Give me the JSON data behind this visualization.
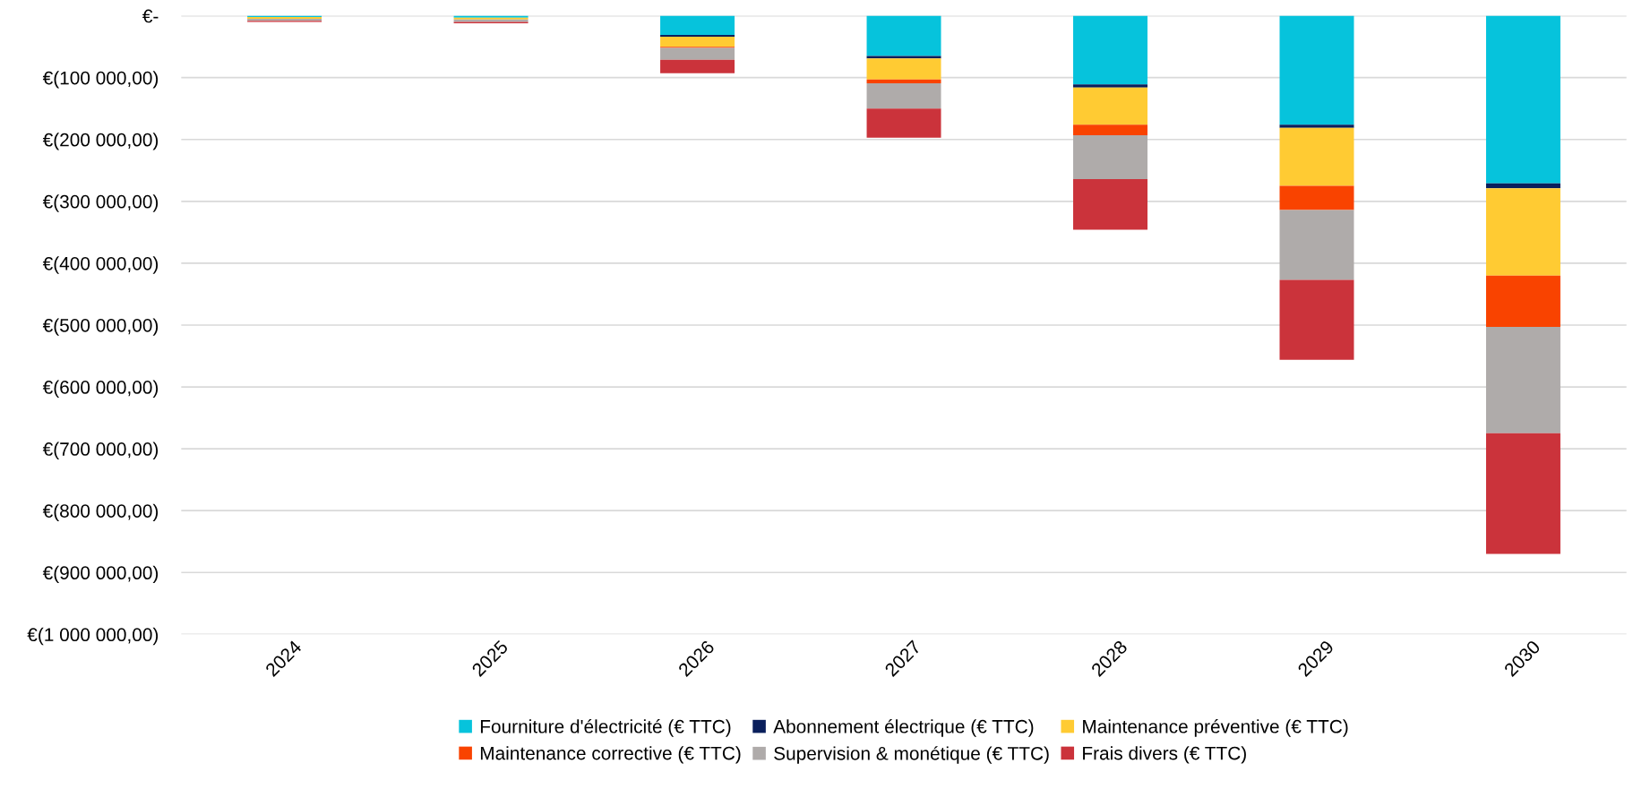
{
  "chart_data": {
    "type": "bar",
    "stacked": true,
    "categories": [
      "2024",
      "2025",
      "2026",
      "2027",
      "2028",
      "2029",
      "2030"
    ],
    "series": [
      {
        "name": "Fourniture d'électricité (€ TTC)",
        "color": "#06c3dc",
        "values": [
          -2000,
          -3000,
          -31000,
          -65000,
          -111000,
          -176000,
          -271000
        ]
      },
      {
        "name": "Abonnement électrique (€ TTC)",
        "color": "#0a1f5c",
        "values": [
          null,
          null,
          -3000,
          -4000,
          -5000,
          -5000,
          -8000
        ]
      },
      {
        "name": "Maintenance préventive (€ TTC)",
        "color": "#ffcb33",
        "values": [
          -3000,
          -3000,
          -16000,
          -34000,
          -60000,
          -94000,
          -141000
        ]
      },
      {
        "name": "Maintenance corrective (€ TTC)",
        "color": "#f94300",
        "values": [
          null,
          null,
          -2000,
          -6000,
          -17000,
          -39000,
          -83000
        ]
      },
      {
        "name": "Supervision & monétique (€ TTC)",
        "color": "#afabaa",
        "values": [
          -3000,
          -4000,
          -19000,
          -41000,
          -71000,
          -113000,
          -172000
        ]
      },
      {
        "name": "Frais divers (€ TTC)",
        "color": "#cb333b",
        "values": [
          -2000,
          -2000,
          -22000,
          -47000,
          -82000,
          -129000,
          -195000
        ]
      }
    ],
    "ylim": [
      -1000000,
      0
    ],
    "yticks": [
      {
        "value": 0,
        "label": "€-"
      },
      {
        "value": -100000,
        "label": "€(100 000,00)"
      },
      {
        "value": -200000,
        "label": "€(200 000,00)"
      },
      {
        "value": -300000,
        "label": "€(300 000,00)"
      },
      {
        "value": -400000,
        "label": "€(400 000,00)"
      },
      {
        "value": -500000,
        "label": "€(500 000,00)"
      },
      {
        "value": -600000,
        "label": "€(600 000,00)"
      },
      {
        "value": -700000,
        "label": "€(700 000,00)"
      },
      {
        "value": -800000,
        "label": "€(800 000,00)"
      },
      {
        "value": -900000,
        "label": "€(900 000,00)"
      },
      {
        "value": -1000000,
        "label": "€(1 000 000,00)"
      }
    ],
    "grid": "y",
    "legend": "bottom"
  }
}
